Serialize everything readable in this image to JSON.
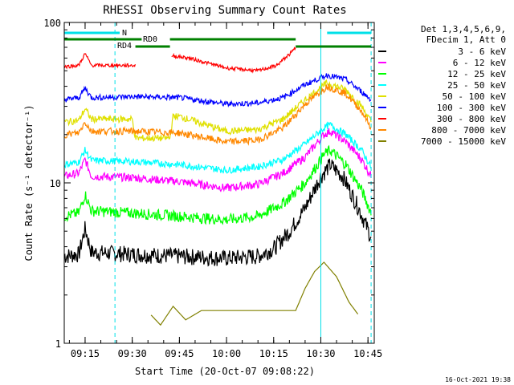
{
  "chart_data": {
    "type": "line",
    "title": "RHESSI Observing Summary Count Rates",
    "ylabel": "Count Rate (s⁻¹ detector⁻¹)",
    "xlabel": "Start Time (20-Oct-07 09:08:22)",
    "y_scale": "log",
    "ylim": [
      1,
      100
    ],
    "y_ticks": [
      {
        "v": 1,
        "label": "1"
      },
      {
        "v": 10,
        "label": "10"
      },
      {
        "v": 100,
        "label": "100"
      }
    ],
    "xlim": [
      "09:08:22",
      "10:47:00"
    ],
    "x_ticks": [
      "09:15",
      "09:30",
      "09:45",
      "10:00",
      "10:15",
      "10:30",
      "10:45"
    ],
    "legend_header": [
      "Det 1,3,4,5,6,9,",
      "FDecim 1, Att 0"
    ],
    "legend_position": "right",
    "timestamp": "16-Oct-2021 19:38",
    "annotations": {
      "night_label": "N",
      "rd0_label": "RD0",
      "rd4_label": "RD4",
      "night_intervals": [
        [
          "09:08:22",
          "09:26:00"
        ],
        [
          "10:32:00",
          "10:46:00"
        ]
      ],
      "rd0_intervals": [
        [
          "09:08:22",
          "09:33:00"
        ],
        [
          "09:42:00",
          "10:22:00"
        ]
      ],
      "rd4_intervals": [
        [
          "09:31:00",
          "09:42:00"
        ],
        [
          "10:22:00",
          "10:46:00"
        ]
      ],
      "solid_vlines": [
        "10:30:00"
      ],
      "dashed_vlines": [
        "09:24:30",
        "10:46:00"
      ],
      "colors": {
        "night": "#00e0e8",
        "rd": "#008000"
      }
    },
    "series": [
      {
        "name": "3 - 6 keV",
        "color": "#000000",
        "noise": 0.12,
        "points": [
          [
            "09:08:22",
            3.5
          ],
          [
            "09:13:00",
            3.6
          ],
          [
            "09:15:00",
            5.2
          ],
          [
            "09:17:00",
            3.7
          ],
          [
            "09:30:00",
            3.6
          ],
          [
            "09:45:00",
            3.5
          ],
          [
            "10:00:00",
            3.4
          ],
          [
            "10:10:00",
            3.5
          ],
          [
            "10:15:00",
            3.9
          ],
          [
            "10:20:00",
            5.0
          ],
          [
            "10:25:00",
            7.0
          ],
          [
            "10:30:00",
            11.0
          ],
          [
            "10:33:00",
            13.0
          ],
          [
            "10:37:00",
            11.0
          ],
          [
            "10:42:00",
            7.0
          ],
          [
            "10:46:00",
            4.6
          ]
        ]
      },
      {
        "name": "6 - 12 keV",
        "color": "#ff00ff",
        "noise": 0.06,
        "points": [
          [
            "09:08:22",
            11.0
          ],
          [
            "09:13:00",
            11.5
          ],
          [
            "09:15:00",
            14.0
          ],
          [
            "09:17:00",
            11.0
          ],
          [
            "09:30:00",
            10.8
          ],
          [
            "09:45:00",
            10.2
          ],
          [
            "10:00:00",
            9.3
          ],
          [
            "10:10:00",
            9.8
          ],
          [
            "10:18:00",
            11.5
          ],
          [
            "10:25:00",
            14.5
          ],
          [
            "10:31:00",
            20.0
          ],
          [
            "10:33:00",
            21.0
          ],
          [
            "10:38:00",
            18.0
          ],
          [
            "10:43:00",
            14.0
          ],
          [
            "10:46:00",
            11.0
          ]
        ]
      },
      {
        "name": "12 - 25 keV",
        "color": "#00ff00",
        "noise": 0.08,
        "points": [
          [
            "09:08:22",
            6.2
          ],
          [
            "09:13:00",
            6.5
          ],
          [
            "09:15:00",
            8.5
          ],
          [
            "09:17:00",
            6.7
          ],
          [
            "09:30:00",
            6.5
          ],
          [
            "09:45:00",
            6.2
          ],
          [
            "10:00:00",
            5.9
          ],
          [
            "10:10:00",
            6.2
          ],
          [
            "10:18:00",
            7.5
          ],
          [
            "10:25:00",
            10.0
          ],
          [
            "10:31:00",
            15.0
          ],
          [
            "10:33:00",
            16.0
          ],
          [
            "10:38:00",
            13.0
          ],
          [
            "10:43:00",
            9.0
          ],
          [
            "10:46:00",
            6.5
          ]
        ]
      },
      {
        "name": "25 - 50 keV",
        "color": "#00ffff",
        "noise": 0.05,
        "points": [
          [
            "09:08:22",
            13.0
          ],
          [
            "09:13:00",
            13.5
          ],
          [
            "09:15:00",
            16.0
          ],
          [
            "09:17:00",
            13.8
          ],
          [
            "09:30:00",
            13.6
          ],
          [
            "09:45:00",
            13.0
          ],
          [
            "10:00:00",
            12.0
          ],
          [
            "10:10:00",
            12.6
          ],
          [
            "10:18:00",
            14.0
          ],
          [
            "10:25:00",
            17.5
          ],
          [
            "10:31:00",
            22.0
          ],
          [
            "10:33:00",
            23.0
          ],
          [
            "10:38:00",
            20.0
          ],
          [
            "10:43:00",
            16.0
          ],
          [
            "10:46:00",
            12.5
          ]
        ]
      },
      {
        "name": "50 - 100 keV",
        "color": "#e0e000",
        "noise": 0.05,
        "points": [
          [
            "09:08:22",
            24.0
          ],
          [
            "09:13:00",
            24.5
          ],
          [
            "09:15:00",
            29.0
          ],
          [
            "09:17:00",
            25.0
          ],
          [
            "09:30:00",
            25.0
          ],
          [
            "09:31:00",
            19.0
          ],
          [
            "09:42:00",
            19.0
          ],
          [
            "09:43:00",
            26.0
          ],
          [
            "09:45:00",
            26.0
          ],
          [
            "10:00:00",
            21.0
          ],
          [
            "10:10:00",
            21.5
          ],
          [
            "10:18:00",
            25.0
          ],
          [
            "10:25:00",
            33.0
          ],
          [
            "10:32:00",
            42.0
          ],
          [
            "10:38:00",
            38.0
          ],
          [
            "10:43:00",
            30.0
          ],
          [
            "10:46:00",
            24.0
          ]
        ]
      },
      {
        "name": "100 - 300 keV",
        "color": "#0000ff",
        "noise": 0.04,
        "points": [
          [
            "09:08:22",
            33.0
          ],
          [
            "09:13:00",
            34.0
          ],
          [
            "09:15:00",
            39.0
          ],
          [
            "09:17:00",
            34.0
          ],
          [
            "09:30:00",
            34.5
          ],
          [
            "09:45:00",
            34.0
          ],
          [
            "10:00:00",
            31.0
          ],
          [
            "10:10:00",
            31.5
          ],
          [
            "10:18:00",
            34.0
          ],
          [
            "10:25:00",
            41.0
          ],
          [
            "10:32:00",
            47.0
          ],
          [
            "10:38:00",
            44.0
          ],
          [
            "10:43:00",
            37.0
          ],
          [
            "10:46:00",
            33.0
          ]
        ]
      },
      {
        "name": "300 - 800 keV",
        "color": "#ff0000",
        "noise": 0.025,
        "points": [
          [
            "09:08:22",
            53.0
          ],
          [
            "09:13:00",
            54.0
          ],
          [
            "09:15:00",
            64.0
          ],
          [
            "09:17:00",
            54.0
          ],
          [
            "09:31:00",
            54.0
          ],
          [
            "09:31:30",
            0
          ],
          [
            "09:42:00",
            0
          ],
          [
            "09:42:30",
            62.0
          ],
          [
            "09:48:00",
            60.0
          ],
          [
            "10:00:00",
            52.0
          ],
          [
            "10:10:00",
            50.0
          ],
          [
            "10:16:00",
            54.0
          ],
          [
            "10:21:00",
            66.0
          ],
          [
            "10:22:00",
            70.0
          ],
          [
            "10:22:30",
            0
          ],
          [
            "10:46:00",
            0
          ]
        ]
      },
      {
        "name": "800 - 7000 keV",
        "color": "#ff8800",
        "noise": 0.05,
        "points": [
          [
            "09:08:22",
            20.0
          ],
          [
            "09:13:00",
            20.5
          ],
          [
            "09:15:00",
            24.0
          ],
          [
            "09:17:00",
            21.0
          ],
          [
            "09:30:00",
            21.0
          ],
          [
            "09:45:00",
            20.5
          ],
          [
            "10:00:00",
            18.0
          ],
          [
            "10:10:00",
            18.5
          ],
          [
            "10:18:00",
            22.0
          ],
          [
            "10:25:00",
            31.0
          ],
          [
            "10:32:00",
            40.0
          ],
          [
            "10:38:00",
            36.0
          ],
          [
            "10:43:00",
            28.0
          ],
          [
            "10:46:00",
            22.0
          ]
        ]
      },
      {
        "name": "7000 - 15000 keV",
        "color": "#808000",
        "noise": 0.0,
        "points": [
          [
            "09:36:00",
            1.5
          ],
          [
            "09:39:00",
            1.3
          ],
          [
            "09:43:00",
            1.7
          ],
          [
            "09:47:00",
            1.4
          ],
          [
            "09:52:00",
            1.6
          ],
          [
            "10:22:00",
            1.6
          ],
          [
            "10:25:00",
            2.2
          ],
          [
            "10:28:00",
            2.8
          ],
          [
            "10:31:00",
            3.2
          ],
          [
            "10:35:00",
            2.6
          ],
          [
            "10:39:00",
            1.8
          ],
          [
            "10:42:00",
            1.5
          ]
        ]
      }
    ]
  }
}
